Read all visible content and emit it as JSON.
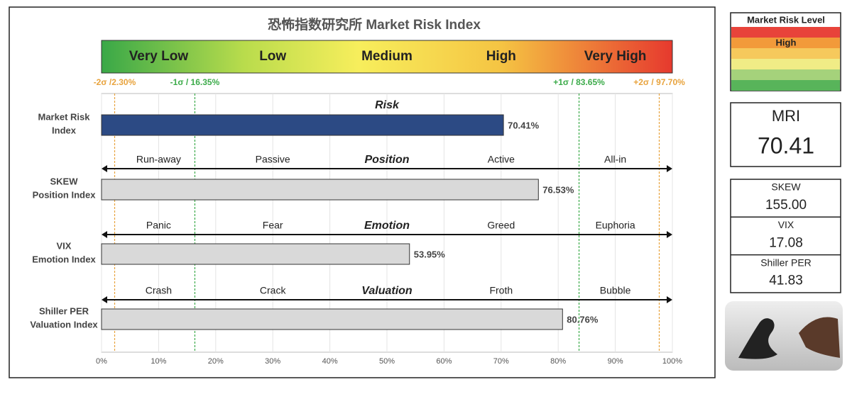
{
  "chart_data": {
    "type": "bar",
    "orientation": "horizontal",
    "title": "恐怖指数研究所   Market Risk Index",
    "scale_labels": [
      "Very Low",
      "Low",
      "Medium",
      "High",
      "Very High"
    ],
    "categories": [
      "Market Risk\nIndex",
      "SKEW\nPosition Index",
      "VIX\nEmotion Index",
      "Shiller PER\nValuation Index"
    ],
    "values": [
      70.41,
      76.53,
      53.95,
      80.76
    ],
    "value_labels": [
      "70.41%",
      "76.53%",
      "53.95%",
      "80.76%"
    ],
    "colors": [
      "#2c4a84",
      "#d9d9d9",
      "#d9d9d9",
      "#d9d9d9"
    ],
    "panels": [
      {
        "title": "Risk"
      },
      {
        "title": "Position",
        "labels": [
          "Run-away",
          "Passive",
          "Active",
          "All-in"
        ]
      },
      {
        "title": "Emotion",
        "labels": [
          "Panic",
          "Fear",
          "Greed",
          "Euphoria"
        ]
      },
      {
        "title": "Valuation",
        "labels": [
          "Crash",
          "Crack",
          "Froth",
          "Bubble"
        ]
      }
    ],
    "sigma_lines": [
      {
        "value": 2.3,
        "label": "-2σ /2.30%",
        "color": "#e8a33d"
      },
      {
        "value": 16.35,
        "label": "-1σ / 16.35%",
        "color": "#3cab4a"
      },
      {
        "value": 83.65,
        "label": "+1σ / 83.65%",
        "color": "#3cab4a"
      },
      {
        "value": 97.7,
        "label": "+2σ / 97.70%",
        "color": "#e8a33d"
      }
    ],
    "xlim": [
      0,
      100
    ],
    "xticks": [
      {
        "value": 0,
        "label": "0%"
      },
      {
        "value": 10,
        "label": "10%"
      },
      {
        "value": 20,
        "label": "20%"
      },
      {
        "value": 30,
        "label": "30%"
      },
      {
        "value": 40,
        "label": "40%"
      },
      {
        "value": 50,
        "label": "50%"
      },
      {
        "value": 60,
        "label": "60%"
      },
      {
        "value": 70,
        "label": "70%"
      },
      {
        "value": 80,
        "label": "80%"
      },
      {
        "value": 90,
        "label": "90%"
      },
      {
        "value": 100,
        "label": "100%"
      }
    ],
    "grid": true
  },
  "sidebar": {
    "risk_level": {
      "title": "Market Risk Level",
      "current": "High",
      "current_index": 1,
      "colors": [
        "#e8433a",
        "#f29a3a",
        "#f6c95c",
        "#f0ec86",
        "#a5d27b",
        "#58b45a"
      ]
    },
    "mri": {
      "label": "MRI",
      "value": "70.41"
    },
    "indicators": [
      {
        "label": "SKEW",
        "value": "155.00"
      },
      {
        "label": "VIX",
        "value": "17.08"
      },
      {
        "label": "Shiller PER",
        "value": "41.83"
      }
    ]
  }
}
